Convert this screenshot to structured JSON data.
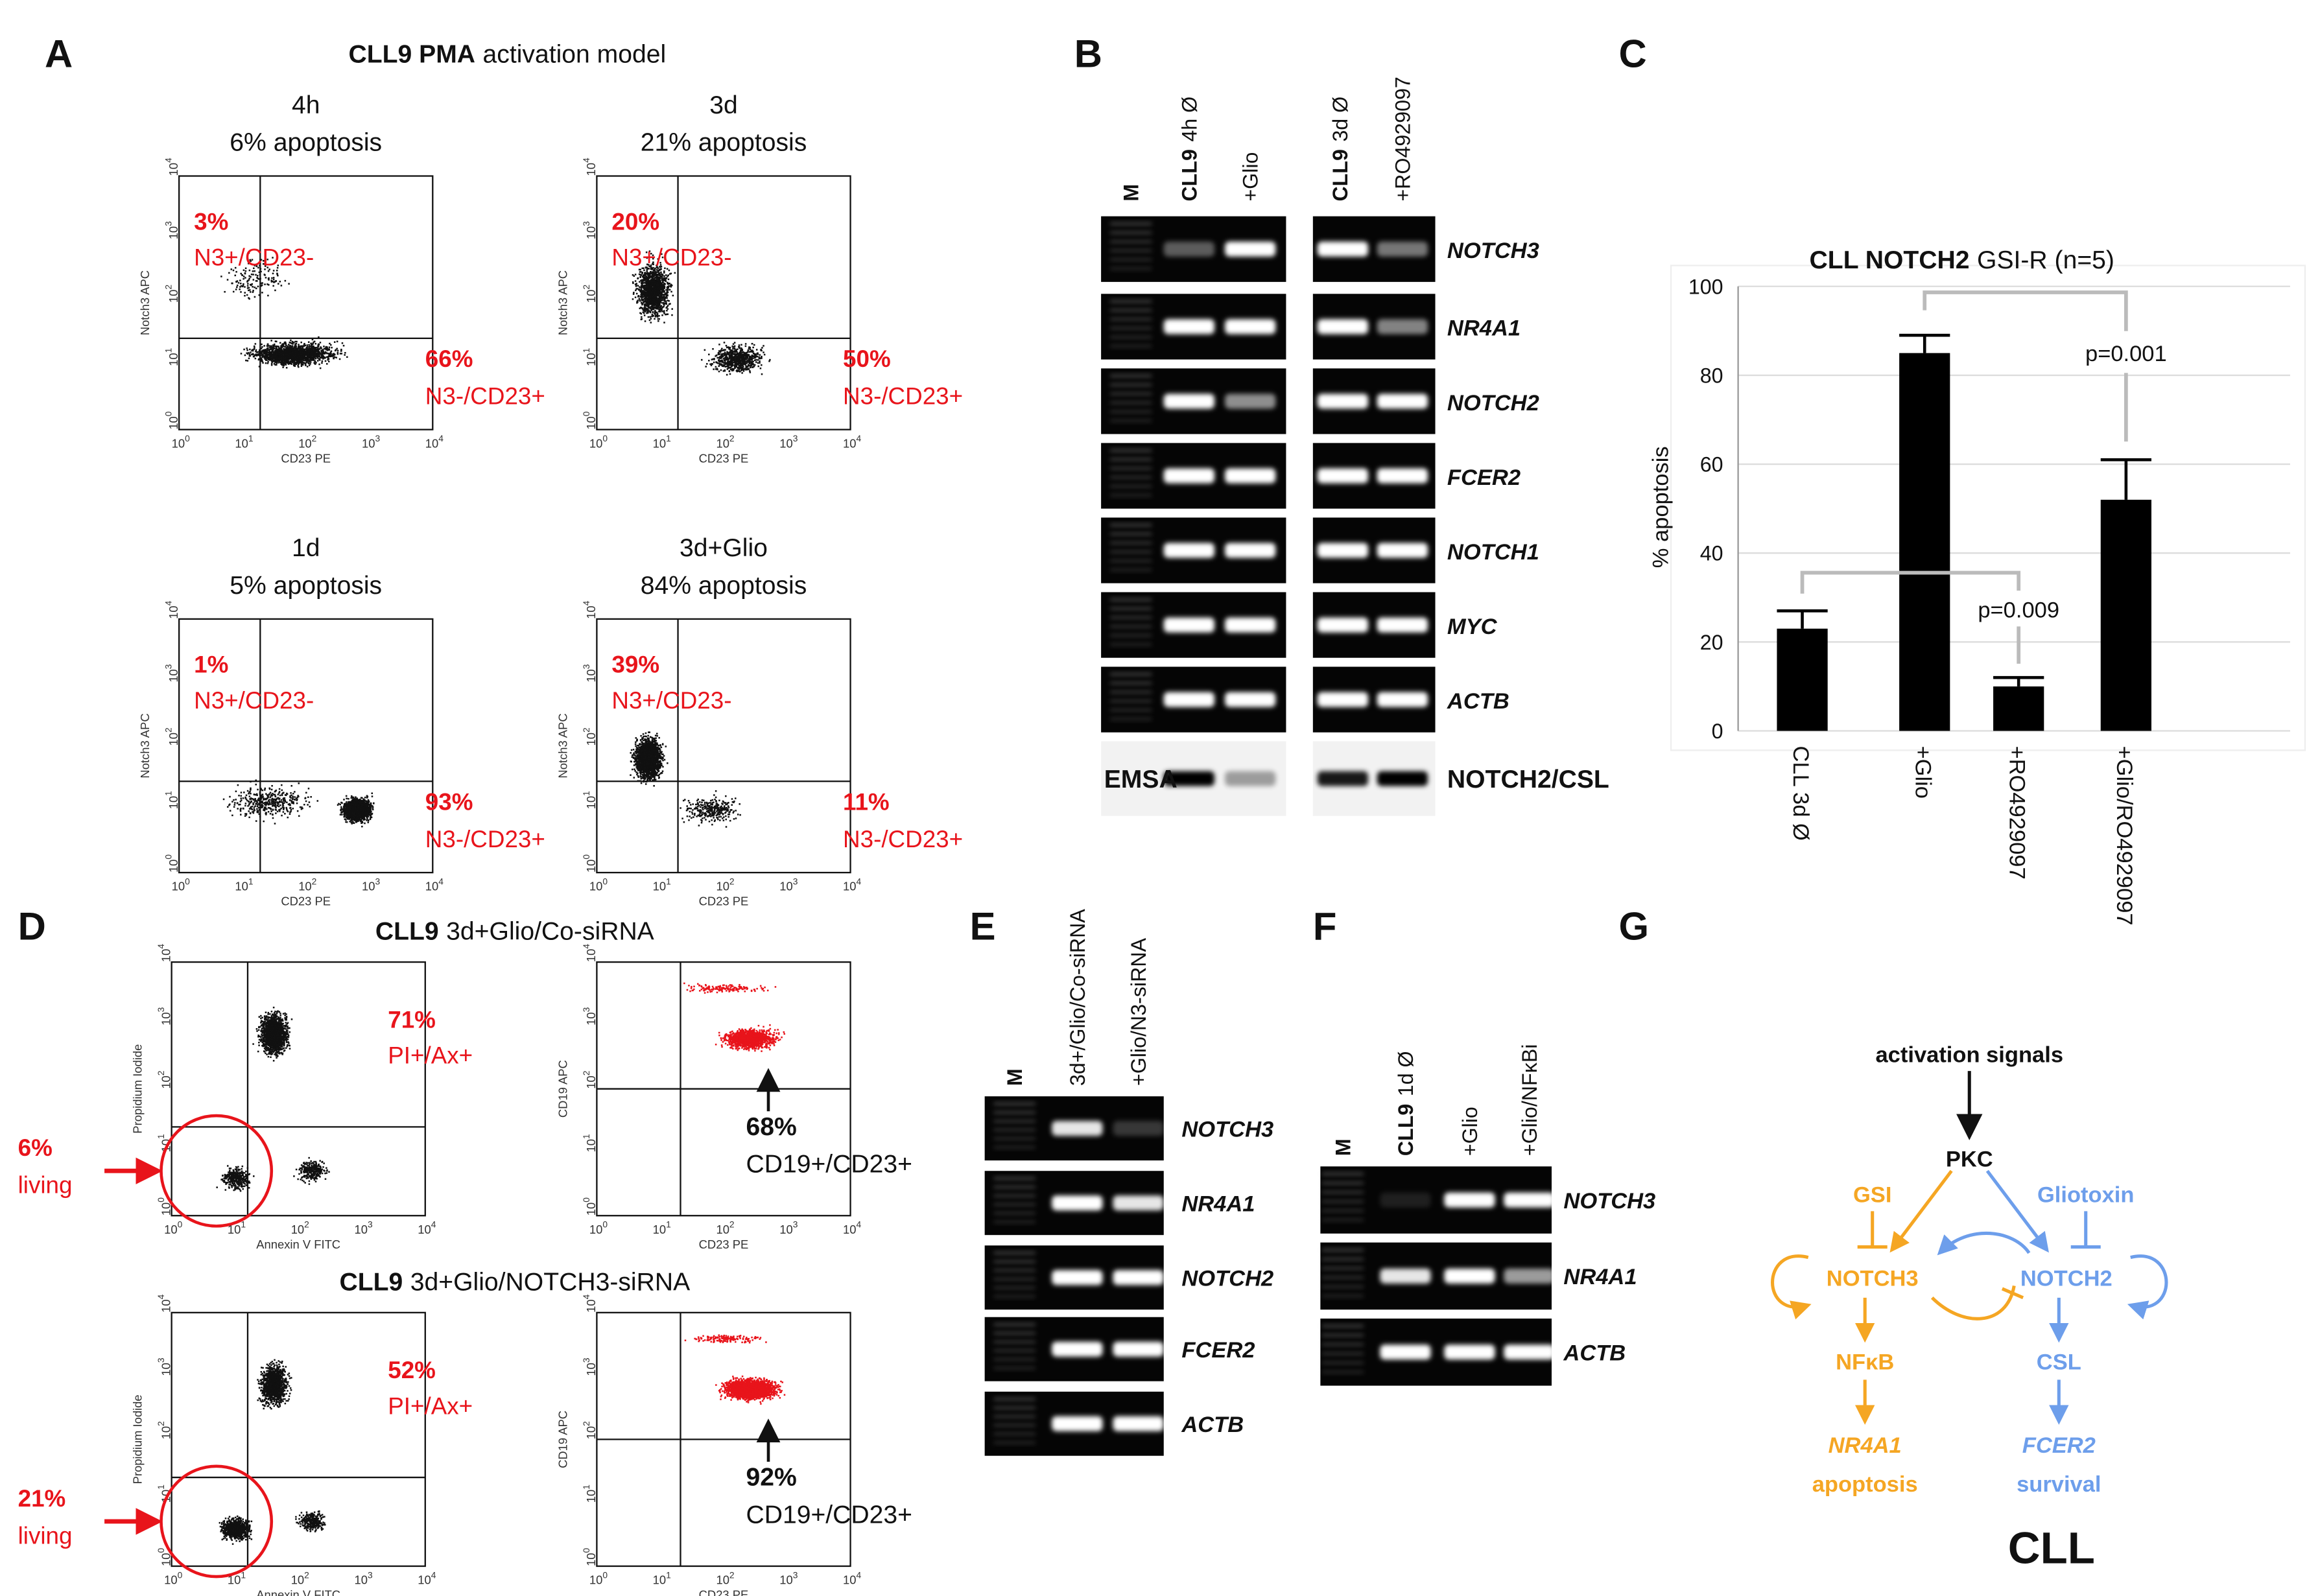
{
  "panel_labels": [
    "A",
    "B",
    "C",
    "D",
    "E",
    "F",
    "G"
  ],
  "flow_ticks": {
    "base": "10",
    "exponents": [
      "0",
      "1",
      "2",
      "3",
      "4"
    ]
  },
  "panel_a": {
    "title": [
      "CLL9 PMA",
      "activation model"
    ],
    "x_axis": "CD23 PE",
    "y_axis": "Notch3 APC",
    "plots": [
      {
        "time": "4h",
        "apoptosis": "6% apoptosis",
        "upper_left": [
          "3%",
          "N3+/CD23-"
        ],
        "lower_right": [
          "66%",
          "N3-/CD23+"
        ]
      },
      {
        "time": "3d",
        "apoptosis": "21% apoptosis",
        "upper_left": [
          "20%",
          "N3+/CD23-"
        ],
        "lower_right": [
          "50%",
          "N3-/CD23+"
        ]
      },
      {
        "time": "1d",
        "apoptosis": "5% apoptosis",
        "upper_left": [
          "1%",
          "N3+/CD23-"
        ],
        "lower_right": [
          "93%",
          "N3-/CD23+"
        ]
      },
      {
        "time": "3d+Glio",
        "apoptosis": "84% apoptosis",
        "upper_left": [
          "39%",
          "N3+/CD23-"
        ],
        "lower_right": [
          "11%",
          "N3-/CD23+"
        ]
      }
    ]
  },
  "panel_b": {
    "lanes": [
      [
        "M"
      ],
      [
        "CLL9",
        "4h Ø"
      ],
      [
        "+Glio"
      ],
      [
        "CLL9",
        "3d Ø"
      ],
      [
        "+RO4929097"
      ]
    ],
    "genes": [
      "NOTCH3",
      "NR4A1",
      "NOTCH2",
      "FCER2",
      "NOTCH1",
      "MYC",
      "ACTB"
    ],
    "emsa": "EMSA",
    "emsa_target": "NOTCH2/CSL"
  },
  "chart_data": {
    "type": "bar",
    "title": [
      "CLL NOTCH2",
      "GSI-R (n=5)"
    ],
    "y_label": "% apoptosis",
    "categories": [
      "CLL 3d Ø",
      "+Glio",
      "+RO4929097",
      "+Glio/RO4929097"
    ],
    "values": [
      23,
      85,
      10,
      52
    ],
    "errors": [
      4,
      4,
      2,
      9
    ],
    "color": "#000000",
    "ylim": [
      0,
      100
    ],
    "yticks": [
      0,
      20,
      40,
      60,
      80,
      100
    ],
    "grid": true,
    "annotations": [
      "p=0.001",
      "p=0.009"
    ]
  },
  "panel_d": {
    "rows": [
      {
        "title": [
          "CLL9",
          "3d+Glio/Co-siRNA"
        ],
        "pi_gate": [
          "71%",
          "PI+/Ax+"
        ],
        "living": [
          "6%",
          "living"
        ],
        "cd_gate": [
          "68%",
          "CD19+/CD23+"
        ]
      },
      {
        "title": [
          "CLL9",
          "3d+Glio/NOTCH3-siRNA"
        ],
        "pi_gate": [
          "52%",
          "PI+/Ax+"
        ],
        "living": [
          "21%",
          "living"
        ],
        "cd_gate": [
          "92%",
          "CD19+/CD23+"
        ]
      }
    ],
    "pi_y": "Propidium Iodide",
    "pi_x": "Annexin V FITC",
    "cd_y": "CD19 APC",
    "cd_x": "CD23 PE"
  },
  "panel_e": {
    "lanes": [
      [
        "M"
      ],
      [
        "3d+/Glio/Co-siRNA"
      ],
      [
        "+Glio/N3-siRNA"
      ]
    ],
    "genes": [
      "NOTCH3",
      "NR4A1",
      "NOTCH2",
      "FCER2",
      "ACTB"
    ]
  },
  "panel_f": {
    "lanes": [
      [
        "M"
      ],
      [
        "CLL9",
        "1d  Ø"
      ],
      [
        "+Glio"
      ],
      [
        "+Glio/NFκBi"
      ]
    ],
    "genes": [
      "NOTCH3",
      "NR4A1",
      "ACTB"
    ]
  },
  "panel_g": {
    "activation": "activation signals",
    "pkc": "PKC",
    "gsi": "GSI",
    "gliotoxin": "Gliotoxin",
    "notch3": "NOTCH3",
    "notch2": "NOTCH2",
    "nfkb": "NFκB",
    "csl": "CSL",
    "nr4a1": "NR4A1",
    "apoptosis": "apoptosis",
    "fcer2": "FCER2",
    "survival": "survival",
    "cll": "CLL"
  }
}
